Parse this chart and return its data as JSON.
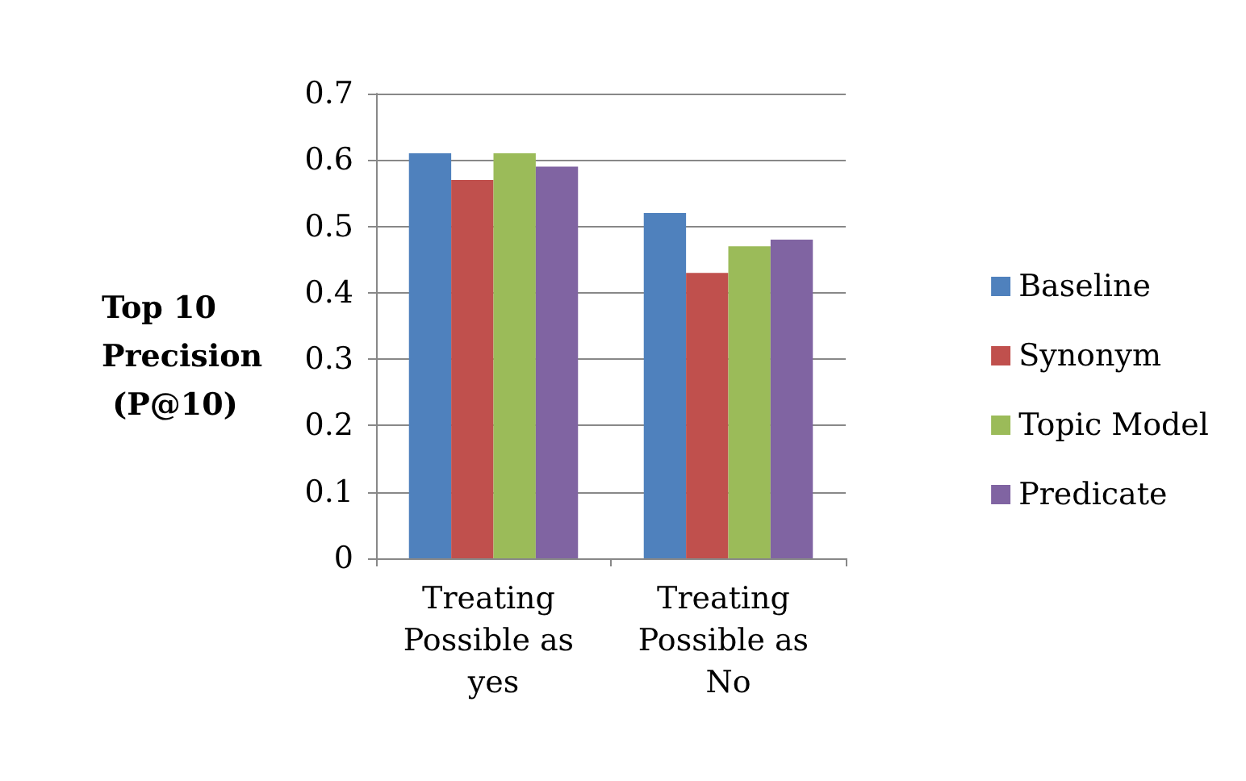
{
  "chart_data": {
    "type": "bar",
    "ylabel": "Top 10 Precision (P@10)",
    "categories": [
      "Treating Possible as yes",
      "Treating Possible as No"
    ],
    "series": [
      {
        "name": "Baseline",
        "color": "#4f81bd",
        "values": [
          0.61,
          0.52
        ]
      },
      {
        "name": "Synonym",
        "color": "#c0504d",
        "values": [
          0.57,
          0.43
        ]
      },
      {
        "name": "Topic Model",
        "color": "#9bbb59",
        "values": [
          0.61,
          0.47
        ]
      },
      {
        "name": "Predicate",
        "color": "#8064a2",
        "values": [
          0.59,
          0.48
        ]
      }
    ],
    "ylim": [
      0,
      0.7
    ],
    "yticks": [
      0,
      0.1,
      0.2,
      0.3,
      0.4,
      0.5,
      0.6,
      0.7
    ],
    "grid": "y",
    "legend": "right"
  }
}
